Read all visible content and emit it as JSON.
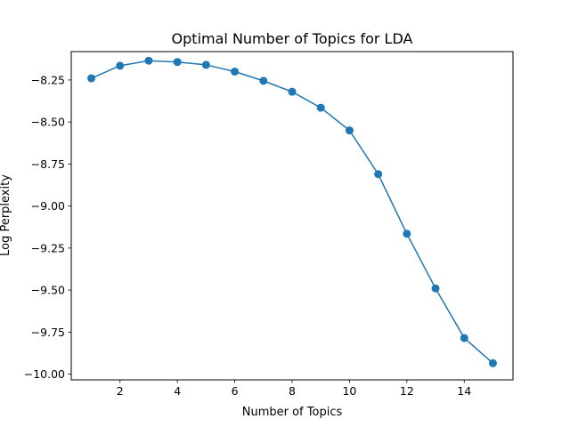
{
  "chart_data": {
    "type": "line",
    "title": "Optimal Number of Topics for LDA",
    "xlabel": "Number of Topics",
    "ylabel": "Log Perplexity",
    "x": [
      1,
      2,
      3,
      4,
      5,
      6,
      7,
      8,
      9,
      10,
      11,
      12,
      13,
      14,
      15
    ],
    "series": [
      {
        "values": [
          -8.24,
          -8.165,
          -8.135,
          -8.143,
          -8.16,
          -8.2,
          -8.255,
          -8.32,
          -8.415,
          -8.55,
          -8.81,
          -9.165,
          -9.49,
          -9.785,
          -9.935
        ],
        "color": "#1f77b4",
        "marker": "circle"
      }
    ],
    "xlim": [
      0.3,
      15.7
    ],
    "ylim": [
      -10.034,
      -8.081
    ],
    "xticks": [
      2,
      4,
      6,
      8,
      10,
      12,
      14
    ],
    "yticks": [
      -8.25,
      -8.5,
      -8.75,
      -9.0,
      -9.25,
      -9.5,
      -9.75,
      -10.0
    ],
    "xtick_labels": [
      "2",
      "4",
      "6",
      "8",
      "10",
      "12",
      "14"
    ],
    "ytick_labels": [
      "−8.25",
      "−8.50",
      "−8.75",
      "−9.00",
      "−9.25",
      "−9.50",
      "−9.75",
      "−10.00"
    ],
    "grid": false,
    "legend": false
  }
}
